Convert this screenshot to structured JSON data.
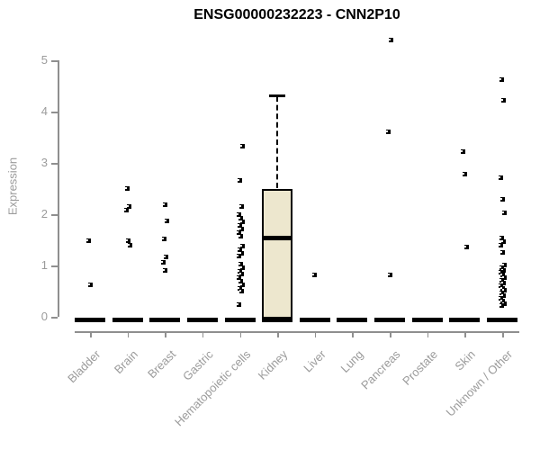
{
  "chart_data": {
    "type": "boxplot",
    "title": "ENSG00000232223 - CNN2P10",
    "ylabel": "Expression",
    "ylim": [
      0,
      5.5
    ],
    "y_ticks": [
      0,
      1,
      2,
      3,
      4,
      5
    ],
    "grid": false,
    "legend": "none",
    "categories": [
      "Bladder",
      "Brain",
      "Breast",
      "Gastric",
      "Hematopoietic cells",
      "Kidney",
      "Liver",
      "Lung",
      "Pancreas",
      "Prostate",
      "Skin",
      "Unknown / Other"
    ],
    "boxes": [
      {
        "category": "Bladder",
        "median": 0
      },
      {
        "category": "Brain",
        "median": 0
      },
      {
        "category": "Breast",
        "median": 0
      },
      {
        "category": "Gastric",
        "median": 0
      },
      {
        "category": "Hematopoietic cells",
        "median": 0
      },
      {
        "category": "Kidney",
        "q1": 0,
        "median": 1.55,
        "q3": 2.5,
        "whisker_low": 0,
        "whisker_high": 4.3
      },
      {
        "category": "Liver",
        "median": 0
      },
      {
        "category": "Lung",
        "median": 0
      },
      {
        "category": "Pancreas",
        "median": 0
      },
      {
        "category": "Prostate",
        "median": 0
      },
      {
        "category": "Skin",
        "median": 0
      },
      {
        "category": "Unknown / Other",
        "median": 0
      }
    ],
    "points": {
      "Bladder": [
        1.5,
        0.63
      ],
      "Brain": [
        2.51,
        2.16,
        2.09,
        1.49,
        1.4
      ],
      "Breast": [
        2.19,
        1.88,
        1.53,
        1.18,
        1.07,
        0.91
      ],
      "Gastric": [],
      "Hematopoietic cells": [
        3.33,
        2.66,
        2.16,
        2.0,
        1.93,
        1.86,
        1.79,
        1.72,
        1.65,
        1.58,
        1.39,
        1.32,
        1.25,
        1.2,
        1.04,
        0.97,
        0.9,
        0.84,
        0.77,
        0.7,
        0.63,
        0.56,
        0.51,
        0.25
      ],
      "Kidney": [],
      "Liver": [
        0.82
      ],
      "Lung": [],
      "Pancreas": [
        5.41,
        3.62,
        0.82
      ],
      "Prostate": [],
      "Skin": [
        3.23,
        2.79,
        1.37
      ],
      "Unknown / Other": [
        4.64,
        4.22,
        2.72,
        2.3,
        2.04,
        1.55,
        1.48,
        1.4,
        1.27,
        1.02,
        0.97,
        0.92,
        0.87,
        0.82,
        0.77,
        0.72,
        0.67,
        0.62,
        0.57,
        0.52,
        0.47,
        0.42,
        0.37,
        0.32,
        0.27,
        0.23
      ]
    }
  },
  "colors": {
    "box_fill": "#ede7ce",
    "axis": "#8f8f8f",
    "tick_label": "#9b9b9b",
    "title": "#000000",
    "marker": "#000000"
  }
}
